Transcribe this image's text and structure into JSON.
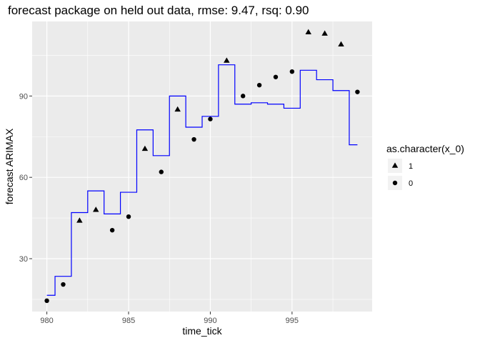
{
  "chart_data": {
    "type": "line",
    "title": "forecast package on held out data, rmse: 9.47, rsq: 0.90",
    "xlabel": "time_tick",
    "ylabel": "forecast ARIMAX",
    "xlim": [
      979.1,
      999.9
    ],
    "ylim": [
      10.5,
      117.5
    ],
    "x_ticks": [
      980,
      985,
      990,
      995
    ],
    "y_ticks": [
      30,
      60,
      90
    ],
    "grid": true,
    "legend": {
      "title": "as.character(x_0)",
      "position": "right",
      "entries": [
        {
          "label": "1",
          "shape": "triangle"
        },
        {
          "label": "0",
          "shape": "circle"
        }
      ]
    },
    "colors": {
      "panel": "#ebebeb",
      "grid": "#ffffff",
      "line": "#0000ff",
      "points": "#000000"
    },
    "forecast_step": {
      "x": [
        980,
        981,
        982,
        983,
        984,
        985,
        986,
        987,
        988,
        989,
        990,
        991,
        992,
        993,
        994,
        995,
        996,
        997,
        998,
        999
      ],
      "y": [
        16.5,
        23.5,
        47,
        55,
        46.5,
        54.5,
        77.5,
        68,
        90,
        78.5,
        82.5,
        101.5,
        87,
        87.5,
        87,
        85.5,
        99.5,
        96,
        92,
        72
      ]
    },
    "observed": [
      {
        "x": 980,
        "y": 14.5,
        "group": "0"
      },
      {
        "x": 981,
        "y": 20.5,
        "group": "0"
      },
      {
        "x": 982,
        "y": 44,
        "group": "1"
      },
      {
        "x": 983,
        "y": 48,
        "group": "1"
      },
      {
        "x": 984,
        "y": 40.5,
        "group": "0"
      },
      {
        "x": 985,
        "y": 45.5,
        "group": "0"
      },
      {
        "x": 986,
        "y": 70.5,
        "group": "1"
      },
      {
        "x": 987,
        "y": 62,
        "group": "0"
      },
      {
        "x": 988,
        "y": 85,
        "group": "1"
      },
      {
        "x": 989,
        "y": 74,
        "group": "0"
      },
      {
        "x": 990,
        "y": 81.5,
        "group": "0"
      },
      {
        "x": 991,
        "y": 103,
        "group": "1"
      },
      {
        "x": 992,
        "y": 90,
        "group": "0"
      },
      {
        "x": 993,
        "y": 94,
        "group": "0"
      },
      {
        "x": 994,
        "y": 97,
        "group": "0"
      },
      {
        "x": 995,
        "y": 99,
        "group": "0"
      },
      {
        "x": 996,
        "y": 113.5,
        "group": "1"
      },
      {
        "x": 997,
        "y": 113,
        "group": "1"
      },
      {
        "x": 998,
        "y": 109,
        "group": "1"
      },
      {
        "x": 999,
        "y": 91.5,
        "group": "0"
      }
    ]
  }
}
